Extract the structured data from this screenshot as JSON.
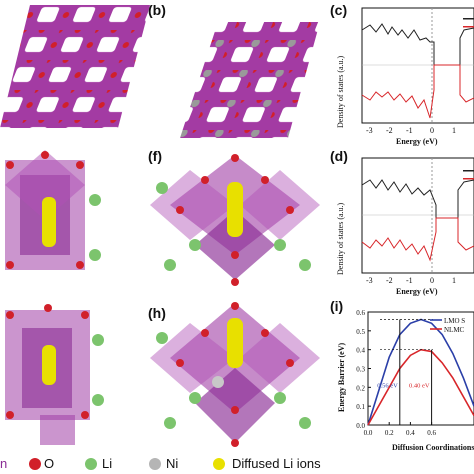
{
  "panels": {
    "b": "(b)",
    "c": "(c)",
    "d": "(d)",
    "f": "(f)",
    "h": "(h)",
    "i": "(i)"
  },
  "dos_c": {
    "ylabel": "Density of states (a.u.)",
    "xlabel": "Energy (eV)",
    "xticks": [
      "-3",
      "-2",
      "-1",
      "0",
      "1"
    ]
  },
  "dos_d": {
    "ylabel": "Density of states (a.u.)",
    "xlabel": "Energy (eV)",
    "xticks": [
      "-3",
      "-2",
      "-1",
      "0",
      "1"
    ]
  },
  "chart_data": [
    {
      "panel": "(i)",
      "type": "line",
      "xlabel": "Diffusion Coordinations",
      "ylabel": "Energy Barrier (eV)",
      "xlim": [
        0,
        1.0
      ],
      "ylim": [
        0,
        0.6
      ],
      "xticks": [
        "0.0",
        "0.2",
        "0.4",
        "0.6"
      ],
      "yticks": [
        "0.0",
        "0.1",
        "0.2",
        "0.3",
        "0.4",
        "0.5",
        "0.6"
      ],
      "legend": "top-right",
      "series": [
        {
          "name": "LMO S",
          "color": "#2b3fa8",
          "x": [
            0.0,
            0.1,
            0.2,
            0.3,
            0.4,
            0.5,
            0.6,
            0.7,
            0.8,
            0.9,
            1.0
          ],
          "y": [
            0.0,
            0.18,
            0.36,
            0.48,
            0.54,
            0.56,
            0.54,
            0.48,
            0.38,
            0.25,
            0.1
          ]
        },
        {
          "name": "NLMC",
          "color": "#d8262a",
          "x": [
            0.0,
            0.1,
            0.2,
            0.3,
            0.4,
            0.5,
            0.6,
            0.7,
            0.8,
            0.9,
            1.0
          ],
          "y": [
            0.0,
            0.1,
            0.2,
            0.3,
            0.37,
            0.4,
            0.39,
            0.33,
            0.25,
            0.15,
            0.05
          ]
        }
      ],
      "annotations": [
        "0.56 eV",
        "0.40 eV"
      ]
    }
  ],
  "legend": {
    "mn": "n",
    "o": "O",
    "li": "Li",
    "ni": "Ni",
    "diffused": "Diffused Li ions"
  }
}
